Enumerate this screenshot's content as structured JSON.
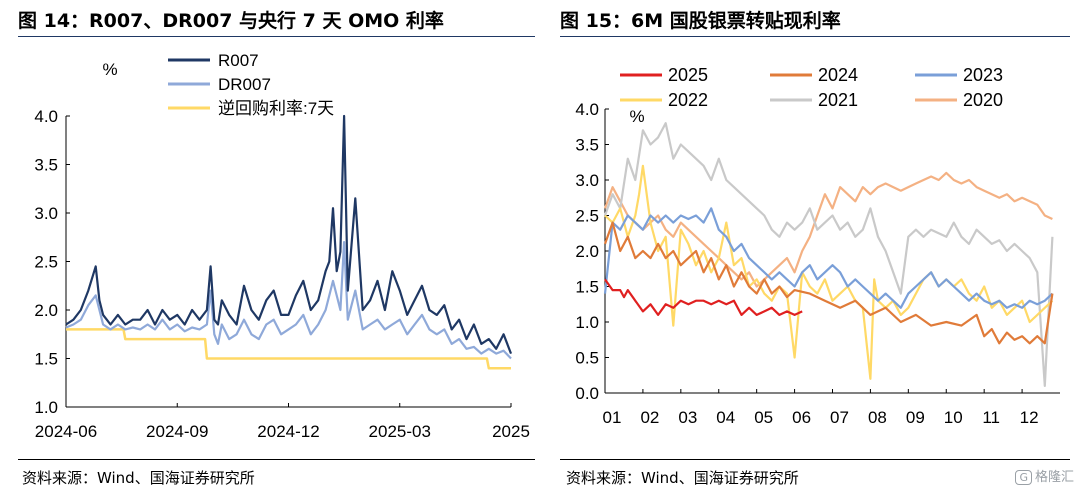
{
  "panels": {
    "left": {
      "title": "图 14：R007、DR007 与央行 7 天 OMO 利率",
      "source": "资料来源：Wind、国海证券研究所"
    },
    "right": {
      "title": "图 15：6M 国股银票转贴现利率",
      "source": "资料来源：Wind、国海证券研究所"
    }
  },
  "watermark": {
    "icon": "G",
    "text": "格隆汇"
  },
  "chart_data": [
    {
      "type": "line",
      "unit_label": "%",
      "ylim": [
        1.0,
        4.0
      ],
      "yticks": [
        "1.0",
        "1.5",
        "2.0",
        "2.5",
        "3.0",
        "3.5",
        "4.0"
      ],
      "xticks": [
        "2024-06",
        "2024-09",
        "2024-12",
        "2025-03",
        "2025"
      ],
      "xtick_positions": [
        0,
        3,
        6,
        9,
        12
      ],
      "xlim": [
        0,
        12
      ],
      "grid": false,
      "legend_position": "top-center",
      "colors": {
        "R007": "#1f3864",
        "DR007": "#8fa9d9",
        "OMO": "#ffd966"
      },
      "series": [
        {
          "name": "R007",
          "x": [
            0,
            0.2,
            0.4,
            0.6,
            0.8,
            0.9,
            1.0,
            1.1,
            1.2,
            1.4,
            1.6,
            1.8,
            2.0,
            2.2,
            2.4,
            2.6,
            2.8,
            3.0,
            3.2,
            3.4,
            3.6,
            3.8,
            3.9,
            4.0,
            4.1,
            4.2,
            4.4,
            4.6,
            4.8,
            5.0,
            5.2,
            5.4,
            5.6,
            5.8,
            6.0,
            6.2,
            6.4,
            6.6,
            6.8,
            7.0,
            7.1,
            7.2,
            7.3,
            7.4,
            7.5,
            7.6,
            7.8,
            8.0,
            8.2,
            8.4,
            8.6,
            8.8,
            9.0,
            9.2,
            9.4,
            9.6,
            9.8,
            10.0,
            10.2,
            10.4,
            10.6,
            10.8,
            11.0,
            11.2,
            11.4,
            11.6,
            11.8,
            12.0
          ],
          "values": [
            1.85,
            1.9,
            2.0,
            2.2,
            2.45,
            2.1,
            1.95,
            1.9,
            1.85,
            1.95,
            1.85,
            1.9,
            1.9,
            2.0,
            1.85,
            2.0,
            1.9,
            1.95,
            1.85,
            2.0,
            1.9,
            2.0,
            2.45,
            1.9,
            1.85,
            2.1,
            1.95,
            1.85,
            2.25,
            2.0,
            1.9,
            2.1,
            2.2,
            1.95,
            1.95,
            2.15,
            2.3,
            2.0,
            2.1,
            2.4,
            2.5,
            3.05,
            2.4,
            2.6,
            4.0,
            2.2,
            3.15,
            2.0,
            2.1,
            2.3,
            2.0,
            2.4,
            2.2,
            1.95,
            2.1,
            2.25,
            2.0,
            1.95,
            2.05,
            1.8,
            1.9,
            1.7,
            1.85,
            1.65,
            1.7,
            1.6,
            1.75,
            1.55
          ]
        },
        {
          "name": "DR007",
          "x": [
            0,
            0.2,
            0.4,
            0.6,
            0.8,
            1.0,
            1.2,
            1.4,
            1.6,
            1.8,
            2.0,
            2.2,
            2.4,
            2.6,
            2.8,
            3.0,
            3.2,
            3.4,
            3.6,
            3.8,
            3.9,
            4.0,
            4.1,
            4.2,
            4.4,
            4.6,
            4.8,
            5.0,
            5.2,
            5.4,
            5.6,
            5.8,
            6.0,
            6.2,
            6.4,
            6.6,
            6.8,
            7.0,
            7.2,
            7.4,
            7.5,
            7.6,
            7.8,
            8.0,
            8.2,
            8.4,
            8.6,
            8.8,
            9.0,
            9.2,
            9.4,
            9.6,
            9.8,
            10.0,
            10.2,
            10.4,
            10.6,
            10.8,
            11.0,
            11.2,
            11.4,
            11.6,
            11.8,
            12.0
          ],
          "values": [
            1.82,
            1.85,
            1.9,
            2.05,
            2.15,
            1.85,
            1.8,
            1.85,
            1.8,
            1.82,
            1.8,
            1.85,
            1.8,
            1.9,
            1.8,
            1.85,
            1.78,
            1.82,
            1.8,
            1.85,
            2.2,
            1.75,
            1.65,
            1.85,
            1.7,
            1.75,
            1.9,
            1.75,
            1.7,
            1.85,
            1.9,
            1.75,
            1.8,
            1.85,
            1.95,
            1.75,
            1.85,
            2.0,
            2.3,
            2.0,
            2.7,
            1.9,
            2.2,
            1.8,
            1.85,
            1.9,
            1.8,
            1.85,
            1.9,
            1.75,
            1.85,
            1.95,
            1.8,
            1.75,
            1.8,
            1.65,
            1.7,
            1.6,
            1.62,
            1.55,
            1.6,
            1.55,
            1.58,
            1.5
          ]
        },
        {
          "name": "逆回购利率:7天",
          "x": [
            0,
            1.55,
            1.6,
            3.75,
            3.8,
            11.35,
            11.4,
            12.0
          ],
          "values": [
            1.8,
            1.8,
            1.7,
            1.7,
            1.5,
            1.5,
            1.4,
            1.4
          ]
        }
      ]
    },
    {
      "type": "line",
      "unit_label": "%",
      "ylim": [
        0.0,
        4.0
      ],
      "yticks": [
        "0.0",
        "0.5",
        "1.0",
        "1.5",
        "2.0",
        "2.5",
        "3.0",
        "3.5",
        "4.0"
      ],
      "xticks": [
        "01",
        "02",
        "03",
        "04",
        "05",
        "06",
        "07",
        "08",
        "09",
        "10",
        "11",
        "12"
      ],
      "xlim": [
        1,
        13
      ],
      "grid": false,
      "legend_position": "top",
      "series": [
        {
          "name": "2025",
          "color": "#e02020",
          "x": [
            1.0,
            1.2,
            1.4,
            1.5,
            1.6,
            1.8,
            2.0,
            2.2,
            2.4,
            2.6,
            2.8,
            3.0,
            3.2,
            3.4,
            3.6,
            3.8,
            4.0,
            4.2,
            4.4,
            4.6,
            4.8,
            5.0,
            5.2,
            5.4,
            5.6,
            5.8,
            6.0,
            6.2
          ],
          "values": [
            1.6,
            1.45,
            1.45,
            1.35,
            1.45,
            1.3,
            1.15,
            1.25,
            1.1,
            1.25,
            1.2,
            1.3,
            1.25,
            1.3,
            1.3,
            1.25,
            1.3,
            1.25,
            1.3,
            1.1,
            1.2,
            1.1,
            1.15,
            1.2,
            1.1,
            1.15,
            1.1,
            1.15
          ]
        },
        {
          "name": "2024",
          "color": "#e07b39",
          "x": [
            1.0,
            1.2,
            1.4,
            1.6,
            1.8,
            2.0,
            2.2,
            2.4,
            2.6,
            2.8,
            3.0,
            3.2,
            3.4,
            3.6,
            3.8,
            4.0,
            4.2,
            4.4,
            4.6,
            4.8,
            5.0,
            5.2,
            5.4,
            5.6,
            5.8,
            6.0,
            6.4,
            6.8,
            7.2,
            7.6,
            8.0,
            8.4,
            8.8,
            9.2,
            9.6,
            10.0,
            10.4,
            10.8,
            11.0,
            11.2,
            11.4,
            11.6,
            11.8,
            12.0,
            12.2,
            12.4,
            12.6,
            12.8
          ],
          "values": [
            2.1,
            2.4,
            2.0,
            2.2,
            1.9,
            2.0,
            1.9,
            2.1,
            1.9,
            2.0,
            1.8,
            1.9,
            2.0,
            1.7,
            1.9,
            1.6,
            1.8,
            1.5,
            1.7,
            1.5,
            1.4,
            1.6,
            1.4,
            1.5,
            1.35,
            1.45,
            1.4,
            1.3,
            1.2,
            1.3,
            1.1,
            1.2,
            1.0,
            1.1,
            0.95,
            1.0,
            0.95,
            1.1,
            0.8,
            0.9,
            0.7,
            0.85,
            0.75,
            0.8,
            0.7,
            0.8,
            0.7,
            1.4
          ]
        },
        {
          "name": "2023",
          "color": "#7a9fd8",
          "x": [
            1.0,
            1.2,
            1.4,
            1.6,
            1.8,
            2.0,
            2.2,
            2.4,
            2.6,
            2.8,
            3.0,
            3.2,
            3.4,
            3.6,
            3.8,
            4.0,
            4.2,
            4.4,
            4.6,
            4.8,
            5.0,
            5.2,
            5.4,
            5.6,
            5.8,
            6.0,
            6.2,
            6.4,
            6.6,
            6.8,
            7.0,
            7.2,
            7.4,
            7.6,
            7.8,
            8.0,
            8.2,
            8.4,
            8.6,
            8.8,
            9.0,
            9.2,
            9.4,
            9.6,
            9.8,
            10.0,
            10.2,
            10.4,
            10.6,
            10.8,
            11.0,
            11.2,
            11.4,
            11.6,
            11.8,
            12.0,
            12.2,
            12.4,
            12.6,
            12.8
          ],
          "values": [
            1.4,
            2.4,
            2.3,
            2.5,
            2.4,
            2.3,
            2.5,
            2.4,
            2.5,
            2.4,
            2.5,
            2.45,
            2.5,
            2.4,
            2.6,
            2.3,
            2.2,
            2.0,
            2.1,
            1.9,
            1.8,
            1.7,
            1.6,
            1.7,
            1.6,
            1.5,
            1.7,
            1.8,
            1.6,
            1.7,
            1.8,
            1.7,
            1.5,
            1.6,
            1.5,
            1.4,
            1.3,
            1.4,
            1.3,
            1.2,
            1.4,
            1.5,
            1.6,
            1.7,
            1.5,
            1.6,
            1.5,
            1.4,
            1.3,
            1.4,
            1.3,
            1.25,
            1.3,
            1.2,
            1.25,
            1.2,
            1.3,
            1.25,
            1.3,
            1.4
          ]
        },
        {
          "name": "2022",
          "color": "#ffd966",
          "x": [
            1.0,
            1.2,
            1.4,
            1.6,
            1.8,
            1.9,
            2.0,
            2.2,
            2.4,
            2.6,
            2.8,
            3.0,
            3.2,
            3.4,
            3.6,
            3.8,
            4.0,
            4.2,
            4.4,
            4.6,
            4.8,
            5.0,
            5.2,
            5.4,
            5.6,
            5.8,
            6.0,
            6.2,
            6.4,
            6.6,
            6.8,
            7.0,
            7.2,
            7.4,
            7.6,
            7.8,
            8.0,
            8.1,
            8.2,
            8.4,
            8.6,
            8.8,
            9.0,
            9.2,
            9.4,
            9.6,
            9.8,
            10.0,
            10.2,
            10.4,
            10.6,
            10.8,
            11.0,
            11.2,
            11.4,
            11.6,
            11.8,
            12.0,
            12.2,
            12.4,
            12.6,
            12.8
          ],
          "values": [
            2.5,
            2.4,
            2.6,
            2.2,
            2.5,
            2.8,
            3.2,
            2.4,
            2.0,
            2.2,
            0.95,
            2.3,
            2.1,
            1.8,
            2.0,
            1.7,
            1.9,
            2.4,
            1.8,
            1.9,
            1.5,
            1.6,
            1.4,
            1.3,
            1.5,
            1.4,
            0.5,
            1.7,
            1.5,
            1.4,
            1.6,
            1.3,
            1.4,
            1.5,
            1.3,
            1.2,
            0.2,
            1.6,
            1.3,
            1.2,
            1.3,
            1.1,
            1.2,
            1.4,
            1.6,
            1.7,
            1.5,
            1.6,
            1.5,
            1.6,
            1.4,
            1.3,
            1.5,
            1.2,
            1.3,
            1.1,
            1.2,
            1.3,
            1.0,
            1.1,
            1.2,
            1.3
          ]
        },
        {
          "name": "2021",
          "color": "#c9c9c9",
          "x": [
            1.0,
            1.2,
            1.4,
            1.6,
            1.8,
            2.0,
            2.2,
            2.4,
            2.6,
            2.8,
            3.0,
            3.2,
            3.4,
            3.6,
            3.8,
            4.0,
            4.2,
            4.4,
            4.6,
            4.8,
            5.0,
            5.2,
            5.4,
            5.6,
            5.8,
            6.0,
            6.2,
            6.4,
            6.6,
            6.8,
            7.0,
            7.2,
            7.4,
            7.6,
            7.8,
            8.0,
            8.2,
            8.4,
            8.6,
            8.8,
            9.0,
            9.2,
            9.4,
            9.6,
            9.8,
            10.0,
            10.2,
            10.4,
            10.6,
            10.8,
            11.0,
            11.2,
            11.4,
            11.6,
            11.8,
            12.0,
            12.2,
            12.4,
            12.6,
            12.8
          ],
          "values": [
            2.5,
            2.8,
            2.6,
            3.3,
            3.0,
            3.7,
            3.5,
            3.6,
            3.8,
            3.3,
            3.5,
            3.4,
            3.3,
            3.2,
            3.0,
            3.3,
            3.0,
            2.9,
            2.8,
            2.7,
            2.6,
            2.5,
            2.3,
            2.2,
            2.4,
            2.3,
            2.4,
            2.6,
            2.3,
            2.4,
            2.5,
            2.3,
            2.4,
            2.2,
            2.3,
            2.6,
            2.2,
            2.0,
            1.7,
            1.4,
            2.2,
            2.3,
            2.2,
            2.3,
            2.25,
            2.2,
            2.4,
            2.2,
            2.1,
            2.3,
            2.2,
            2.1,
            2.15,
            2.0,
            2.1,
            2.0,
            1.9,
            1.7,
            0.1,
            2.2
          ]
        },
        {
          "name": "2020",
          "color": "#f4b183",
          "x": [
            1.0,
            1.2,
            1.4,
            1.6,
            1.8,
            2.0,
            2.2,
            2.4,
            2.6,
            2.8,
            3.0,
            3.2,
            3.4,
            3.6,
            3.8,
            4.0,
            4.2,
            4.4,
            4.6,
            4.8,
            5.0,
            5.2,
            5.4,
            5.6,
            5.8,
            6.0,
            6.2,
            6.4,
            6.6,
            6.8,
            7.0,
            7.2,
            7.4,
            7.6,
            7.8,
            8.0,
            8.2,
            8.4,
            8.6,
            8.8,
            9.0,
            9.2,
            9.4,
            9.6,
            9.8,
            10.0,
            10.2,
            10.4,
            10.6,
            10.8,
            11.0,
            11.2,
            11.4,
            11.6,
            11.8,
            12.0,
            12.2,
            12.4,
            12.6,
            12.8
          ],
          "values": [
            2.6,
            2.9,
            2.7,
            2.5,
            2.4,
            2.3,
            2.4,
            2.5,
            2.3,
            2.2,
            2.4,
            2.3,
            2.2,
            2.1,
            2.0,
            1.9,
            1.8,
            1.7,
            1.6,
            1.7,
            1.5,
            1.6,
            1.7,
            1.8,
            1.9,
            1.7,
            2.0,
            2.2,
            2.5,
            2.8,
            2.6,
            2.9,
            2.8,
            2.7,
            2.9,
            2.8,
            2.9,
            2.95,
            2.9,
            2.85,
            2.9,
            2.95,
            3.0,
            3.05,
            3.0,
            3.1,
            3.0,
            2.95,
            3.0,
            2.9,
            2.85,
            2.8,
            2.75,
            2.8,
            2.7,
            2.75,
            2.7,
            2.65,
            2.5,
            2.45
          ]
        }
      ]
    }
  ]
}
